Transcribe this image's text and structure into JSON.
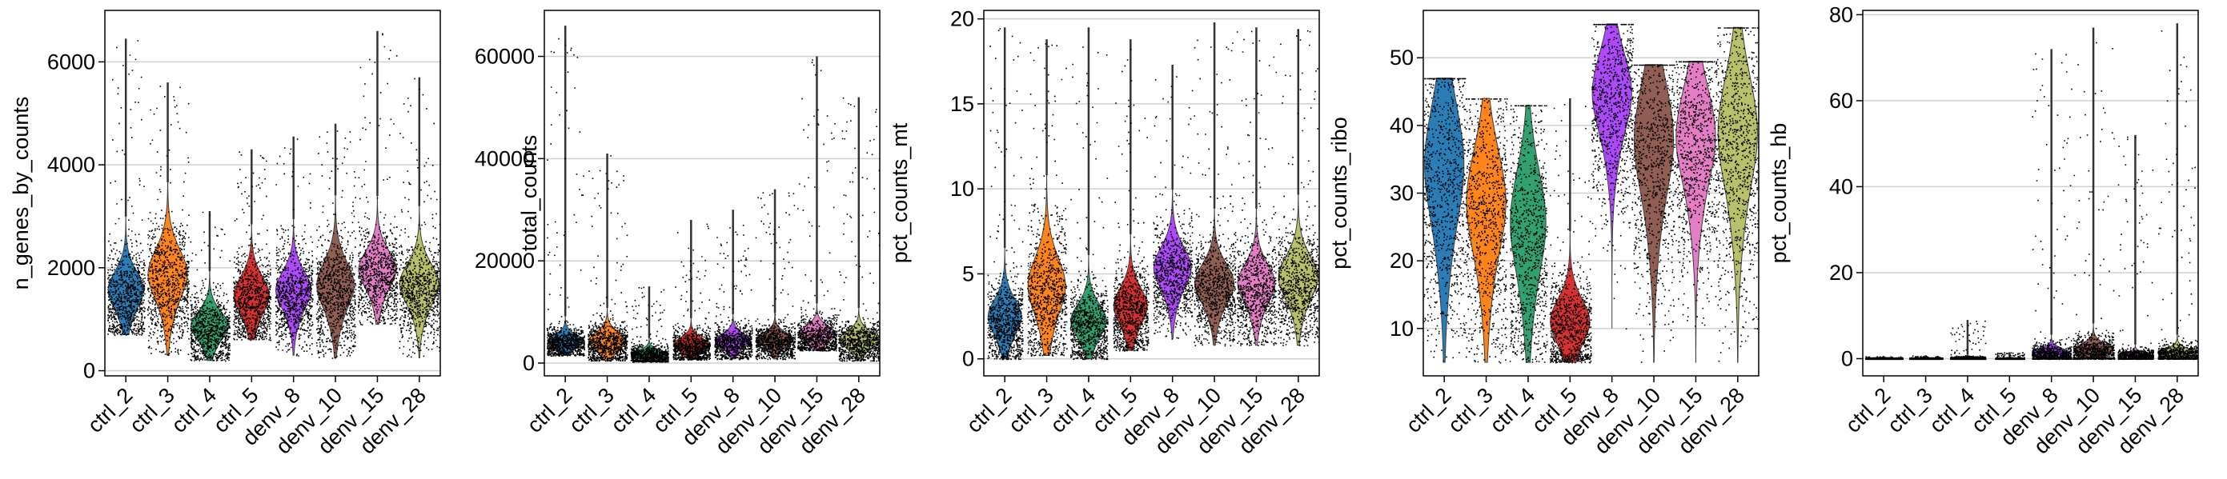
{
  "colors": [
    "#1f77b4",
    "#ff7f0e",
    "#279e68",
    "#d62728",
    "#aa40fc",
    "#8c564b",
    "#e377c2",
    "#b5bd61"
  ],
  "chart_data": [
    {
      "type": "violin",
      "ylabel": "n_genes_by_counts",
      "ylim": [
        -100,
        7000
      ],
      "yticks": [
        0,
        2000,
        4000,
        6000
      ],
      "grid": true,
      "categories": [
        "ctrl_2",
        "ctrl_3",
        "ctrl_4",
        "ctrl_5",
        "denv_8",
        "denv_10",
        "denv_15",
        "denv_28"
      ],
      "series": [
        {
          "min": 700,
          "q1": 1150,
          "median": 1400,
          "q3": 1750,
          "max": 6450,
          "width": 0.9
        },
        {
          "min": 300,
          "q1": 1200,
          "median": 1650,
          "q3": 2000,
          "max": 5600,
          "width": 1.0
        },
        {
          "min": 200,
          "q1": 550,
          "median": 750,
          "q3": 1000,
          "max": 3100,
          "width": 0.95
        },
        {
          "min": 600,
          "q1": 1000,
          "median": 1300,
          "q3": 1600,
          "max": 4300,
          "width": 0.9
        },
        {
          "min": 300,
          "q1": 1100,
          "median": 1400,
          "q3": 1700,
          "max": 4550,
          "width": 0.9
        },
        {
          "min": 250,
          "q1": 1100,
          "median": 1450,
          "q3": 1850,
          "max": 4800,
          "width": 0.95
        },
        {
          "min": 900,
          "q1": 1550,
          "median": 1800,
          "q3": 2150,
          "max": 6600,
          "width": 0.95
        },
        {
          "min": 250,
          "q1": 1200,
          "median": 1500,
          "q3": 1850,
          "max": 5700,
          "width": 1.0
        }
      ]
    },
    {
      "type": "violin",
      "ylabel": "total_counts",
      "ylim": [
        -2500,
        69000
      ],
      "yticks": [
        0,
        20000,
        40000,
        60000
      ],
      "grid": true,
      "categories": [
        "ctrl_2",
        "ctrl_3",
        "ctrl_4",
        "ctrl_5",
        "denv_8",
        "denv_10",
        "denv_15",
        "denv_28"
      ],
      "series": [
        {
          "min": 1500,
          "q1": 3000,
          "median": 3800,
          "q3": 5000,
          "max": 66000,
          "width": 0.9
        },
        {
          "min": 500,
          "q1": 2200,
          "median": 3500,
          "q3": 5000,
          "max": 41000,
          "width": 0.95
        },
        {
          "min": 300,
          "q1": 900,
          "median": 1400,
          "q3": 2200,
          "max": 15000,
          "width": 0.9
        },
        {
          "min": 700,
          "q1": 2000,
          "median": 3000,
          "q3": 4200,
          "max": 28000,
          "width": 0.9
        },
        {
          "min": 800,
          "q1": 2800,
          "median": 3800,
          "q3": 5000,
          "max": 30000,
          "width": 0.9
        },
        {
          "min": 800,
          "q1": 3000,
          "median": 4000,
          "q3": 5200,
          "max": 34000,
          "width": 0.95
        },
        {
          "min": 2500,
          "q1": 4000,
          "median": 5000,
          "q3": 6500,
          "max": 60000,
          "width": 0.95
        },
        {
          "min": 500,
          "q1": 2500,
          "median": 3800,
          "q3": 5200,
          "max": 52000,
          "width": 1.0
        }
      ]
    },
    {
      "type": "violin",
      "ylabel": "pct_counts_mt",
      "ylim": [
        -1,
        20.5
      ],
      "yticks": [
        0,
        5,
        10,
        15,
        20
      ],
      "grid": true,
      "categories": [
        "ctrl_2",
        "ctrl_3",
        "ctrl_4",
        "ctrl_5",
        "denv_8",
        "denv_10",
        "denv_15",
        "denv_28"
      ],
      "series": [
        {
          "min": 0,
          "q1": 1.3,
          "median": 2.0,
          "q3": 3.0,
          "max": 19.5,
          "width": 0.85
        },
        {
          "min": 0.2,
          "q1": 2.2,
          "median": 3.5,
          "q3": 5.0,
          "max": 18.8,
          "width": 0.95
        },
        {
          "min": 0,
          "q1": 1.2,
          "median": 1.8,
          "q3": 2.8,
          "max": 19.5,
          "width": 0.9
        },
        {
          "min": 0.5,
          "q1": 1.8,
          "median": 2.6,
          "q3": 3.6,
          "max": 18.8,
          "width": 0.85
        },
        {
          "min": 1.2,
          "q1": 3.8,
          "median": 4.8,
          "q3": 5.8,
          "max": 17.3,
          "width": 0.95
        },
        {
          "min": 0.8,
          "q1": 3.0,
          "median": 3.9,
          "q3": 4.9,
          "max": 19.8,
          "width": 1.0
        },
        {
          "min": 0.8,
          "q1": 3.0,
          "median": 3.9,
          "q3": 4.9,
          "max": 19.5,
          "width": 0.95
        },
        {
          "min": 0.8,
          "q1": 3.2,
          "median": 4.2,
          "q3": 5.3,
          "max": 19.4,
          "width": 1.0
        }
      ]
    },
    {
      "type": "violin",
      "ylabel": "pct_counts_ribo",
      "ylim": [
        3,
        57
      ],
      "yticks": [
        10,
        20,
        30,
        40,
        50
      ],
      "grid": true,
      "categories": [
        "ctrl_2",
        "ctrl_3",
        "ctrl_4",
        "ctrl_5",
        "denv_8",
        "denv_10",
        "denv_15",
        "denv_28"
      ],
      "series": [
        {
          "min": 5,
          "q1": 22,
          "median": 30,
          "q3": 37,
          "max": 47,
          "width": 1.0
        },
        {
          "min": 5,
          "q1": 18,
          "median": 25,
          "q3": 31,
          "max": 44,
          "width": 1.0
        },
        {
          "min": 5,
          "q1": 15,
          "median": 22,
          "q3": 28,
          "max": 43,
          "width": 0.9
        },
        {
          "min": 5,
          "q1": 7.5,
          "median": 9.5,
          "q3": 13,
          "max": 44,
          "width": 1.0
        },
        {
          "min": 10,
          "q1": 36,
          "median": 42,
          "q3": 46,
          "max": 55,
          "width": 1.0
        },
        {
          "min": 5,
          "q1": 26,
          "median": 34,
          "q3": 40,
          "max": 49,
          "width": 1.0
        },
        {
          "min": 5,
          "q1": 28,
          "median": 35,
          "q3": 40,
          "max": 49.5,
          "width": 1.0
        },
        {
          "min": 5,
          "q1": 27,
          "median": 35,
          "q3": 41,
          "max": 54.5,
          "width": 1.0
        }
      ]
    },
    {
      "type": "violin",
      "ylabel": "pct_counts_hb",
      "ylim": [
        -4,
        81
      ],
      "yticks": [
        0,
        20,
        40,
        60,
        80
      ],
      "grid": true,
      "categories": [
        "ctrl_2",
        "ctrl_3",
        "ctrl_4",
        "ctrl_5",
        "denv_8",
        "denv_10",
        "denv_15",
        "denv_28"
      ],
      "series": [
        {
          "min": 0,
          "q1": 0,
          "median": 0.05,
          "q3": 0.15,
          "max": 0.6,
          "width": 0.9
        },
        {
          "min": 0,
          "q1": 0,
          "median": 0.05,
          "q3": 0.15,
          "max": 0.8,
          "width": 0.8
        },
        {
          "min": 0,
          "q1": 0,
          "median": 0.1,
          "q3": 0.3,
          "max": 9,
          "width": 0.85
        },
        {
          "min": 0,
          "q1": 0,
          "median": 0.05,
          "q3": 0.15,
          "max": 1.5,
          "width": 0.7
        },
        {
          "min": 0,
          "q1": 0.3,
          "median": 0.8,
          "q3": 2.0,
          "max": 72,
          "width": 0.95
        },
        {
          "min": 0,
          "q1": 0.5,
          "median": 1.2,
          "q3": 3.0,
          "max": 77,
          "width": 1.0
        },
        {
          "min": 0,
          "q1": 0.2,
          "median": 0.5,
          "q3": 1.2,
          "max": 52,
          "width": 0.85
        },
        {
          "min": 0,
          "q1": 0.3,
          "median": 0.8,
          "q3": 2.0,
          "max": 78,
          "width": 0.95
        }
      ]
    }
  ]
}
